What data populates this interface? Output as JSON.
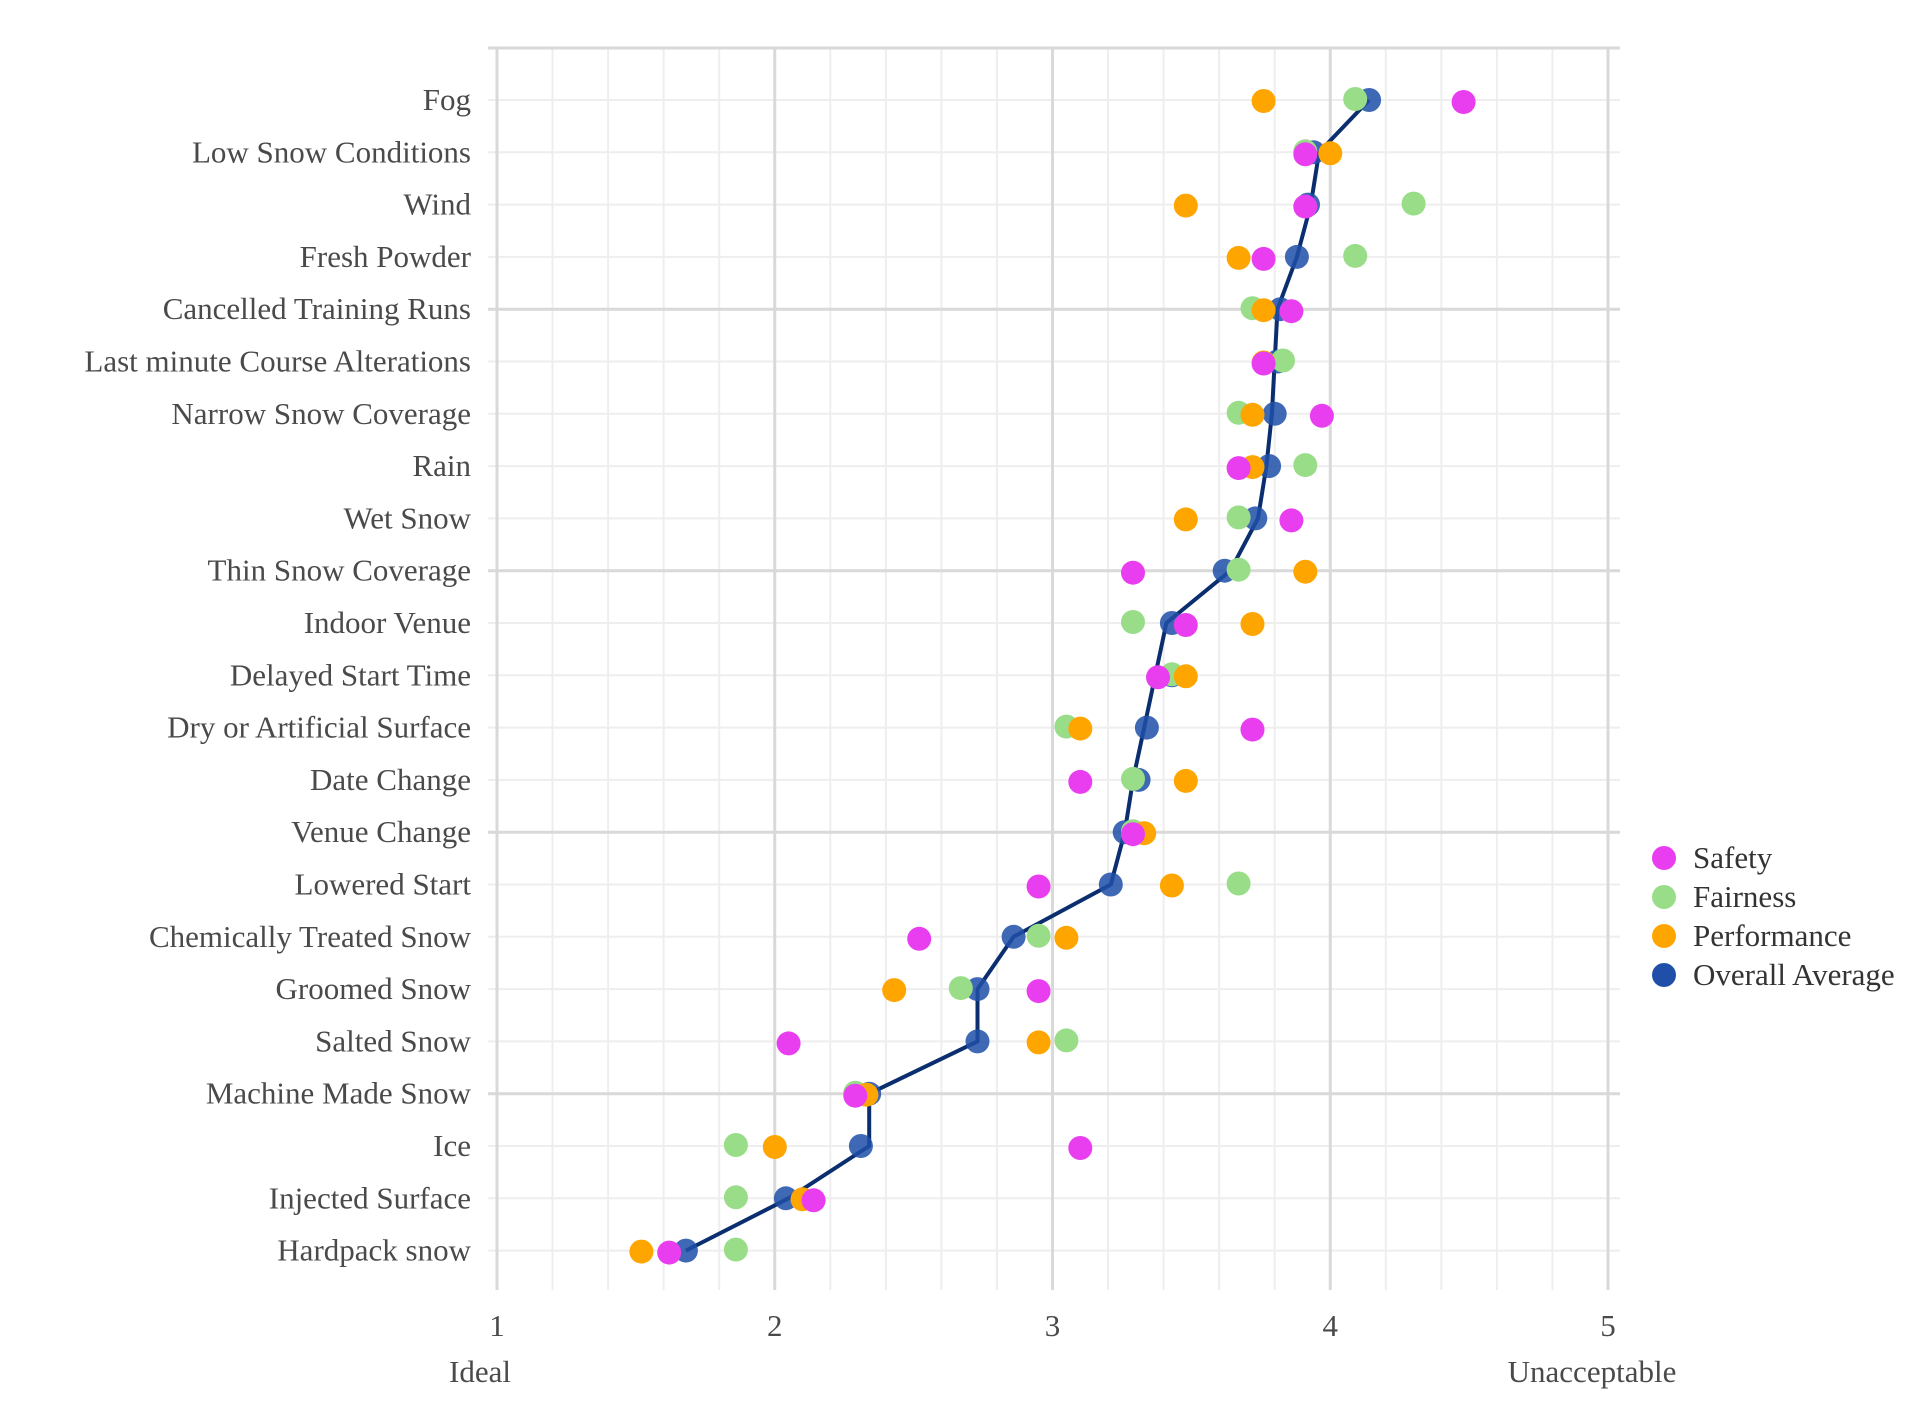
{
  "chart_data": {
    "type": "scatter",
    "title": "",
    "xlabel": "",
    "ylabel": "",
    "xlim": [
      1,
      5
    ],
    "x_ticks": [
      1,
      2,
      3,
      4,
      5
    ],
    "x_end_labels": {
      "low": "Ideal",
      "high": "Unacceptable"
    },
    "legend_position": "right",
    "categories": [
      "Fog",
      "Low Snow Conditions",
      "Wind",
      "Fresh Powder",
      "Cancelled Training Runs",
      "Last minute Course Alterations",
      "Narrow Snow Coverage",
      "Rain",
      "Wet Snow",
      "Thin Snow Coverage",
      "Indoor Venue",
      "Delayed Start Time",
      "Dry or Artificial Surface",
      "Date Change",
      "Venue Change",
      "Lowered Start",
      "Chemically Treated Snow",
      "Groomed Snow",
      "Salted Snow",
      "Machine Made Snow",
      "Ice",
      "Injected Surface",
      "Hardpack snow"
    ],
    "series": [
      {
        "name": "Safety",
        "color": "#e83ef0",
        "values": [
          4.48,
          3.91,
          3.91,
          3.76,
          3.86,
          3.76,
          3.97,
          3.67,
          3.86,
          3.29,
          3.48,
          3.38,
          3.72,
          3.1,
          3.29,
          2.95,
          2.52,
          2.95,
          2.05,
          2.29,
          3.1,
          2.14,
          1.62
        ]
      },
      {
        "name": "Fairness",
        "color": "#99dd88",
        "values": [
          4.09,
          3.91,
          4.3,
          4.09,
          3.72,
          3.83,
          3.67,
          3.91,
          3.67,
          3.67,
          3.29,
          3.43,
          3.05,
          3.29,
          3.29,
          3.67,
          2.95,
          2.67,
          3.05,
          2.29,
          1.86,
          1.86,
          1.86
        ]
      },
      {
        "name": "Performance",
        "color": "#ffa500",
        "values": [
          3.76,
          4.0,
          3.48,
          3.67,
          3.76,
          3.76,
          3.72,
          3.72,
          3.48,
          3.91,
          3.72,
          3.48,
          3.1,
          3.48,
          3.33,
          3.43,
          3.05,
          2.43,
          2.95,
          2.33,
          2.0,
          2.1,
          1.52
        ]
      },
      {
        "name": "Overall Average",
        "color": "#1f4fa8",
        "values": [
          4.14,
          3.94,
          3.92,
          3.88,
          3.82,
          3.81,
          3.8,
          3.78,
          3.73,
          3.62,
          3.43,
          3.43,
          3.34,
          3.31,
          3.26,
          3.21,
          2.86,
          2.73,
          2.73,
          2.34,
          2.31,
          2.04,
          1.68
        ]
      }
    ],
    "line": {
      "series": "Overall Average",
      "color": "#0b2e6f",
      "values": [
        4.14,
        3.96,
        3.93,
        3.88,
        3.81,
        3.8,
        3.79,
        3.77,
        3.74,
        3.64,
        3.41,
        3.37,
        3.33,
        3.29,
        3.26,
        3.21,
        2.86,
        2.73,
        2.73,
        2.34,
        2.34,
        2.05,
        1.68
      ]
    }
  },
  "colors": {
    "grid_major": "#d9d9d9",
    "grid_minor": "#eeeeee",
    "text": "#4a4a4a"
  }
}
